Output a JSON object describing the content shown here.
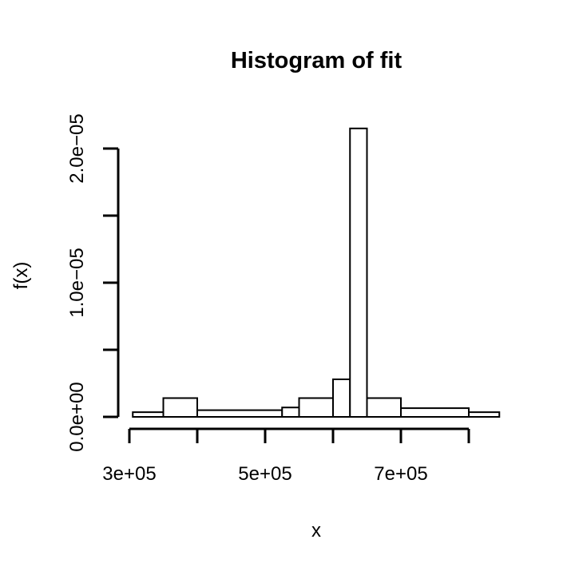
{
  "chart_data": {
    "type": "bar",
    "title": "Histogram of fit",
    "xlabel": "x",
    "ylabel": "f(x)",
    "xlim": [
      300000,
      850000
    ],
    "ylim": [
      0,
      2.15e-05
    ],
    "x_ticks": [
      {
        "value": 300000,
        "label": "3e+05"
      },
      {
        "value": 400000,
        "label": ""
      },
      {
        "value": 500000,
        "label": "5e+05"
      },
      {
        "value": 600000,
        "label": ""
      },
      {
        "value": 700000,
        "label": "7e+05"
      },
      {
        "value": 800000,
        "label": ""
      }
    ],
    "y_ticks": [
      {
        "value": 0,
        "label": "0.0e+00"
      },
      {
        "value": 5e-06,
        "label": ""
      },
      {
        "value": 1e-05,
        "label": "1.0e−05"
      },
      {
        "value": 1.5e-05,
        "label": ""
      },
      {
        "value": 2e-05,
        "label": "2.0e−05"
      }
    ],
    "bins": [
      {
        "start": 305000,
        "end": 350000,
        "value": 3.5e-07
      },
      {
        "start": 350000,
        "end": 400000,
        "value": 1.4e-06
      },
      {
        "start": 400000,
        "end": 525000,
        "value": 5e-07
      },
      {
        "start": 525000,
        "end": 550000,
        "value": 7e-07
      },
      {
        "start": 550000,
        "end": 600000,
        "value": 1.4e-06
      },
      {
        "start": 600000,
        "end": 625000,
        "value": 2.8e-06
      },
      {
        "start": 625000,
        "end": 650000,
        "value": 2.15e-05
      },
      {
        "start": 650000,
        "end": 700000,
        "value": 1.4e-06
      },
      {
        "start": 700000,
        "end": 800000,
        "value": 6.5e-07
      },
      {
        "start": 800000,
        "end": 845000,
        "value": 3.5e-07
      }
    ]
  }
}
